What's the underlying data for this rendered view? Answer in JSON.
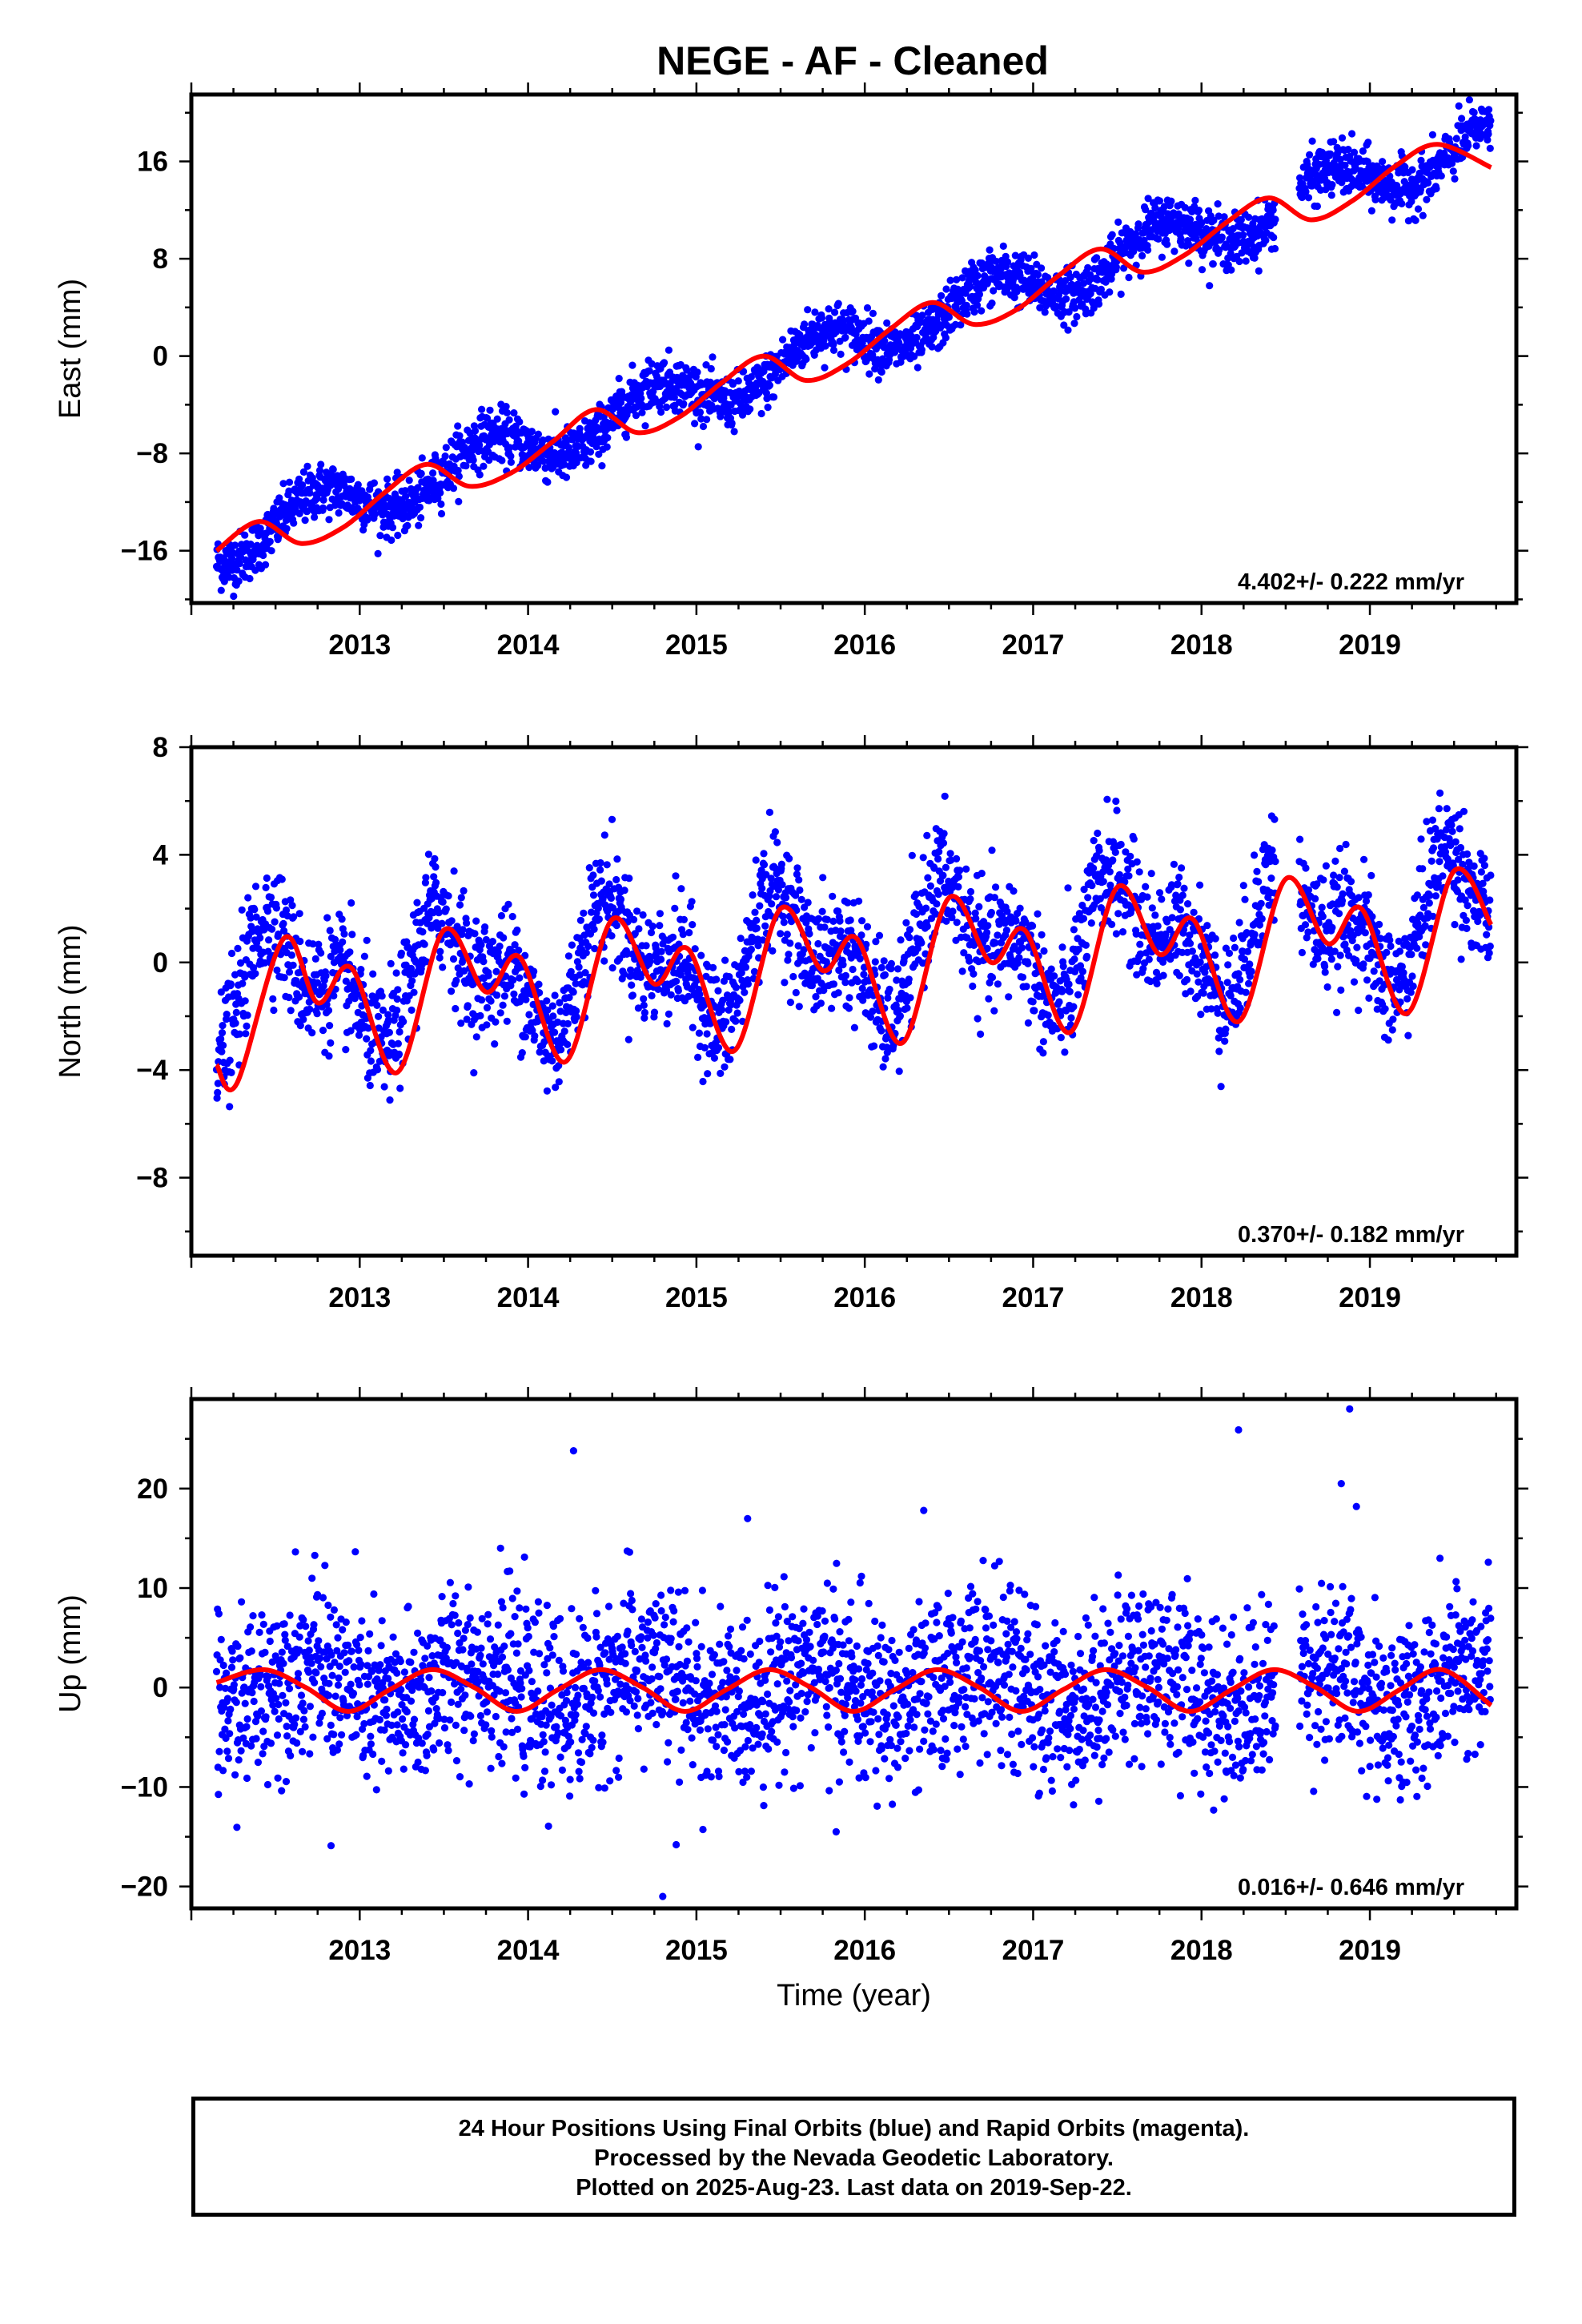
{
  "title": "NEGE  - AF - Cleaned",
  "footer": {
    "lines": [
      "24 Hour Positions Using Final Orbits (blue) and Rapid Orbits (magenta).",
      "Processed by the Nevada Geodetic Laboratory.",
      "Plotted on 2025-Aug-23. Last data on 2019-Sep-22."
    ]
  },
  "colors": {
    "points": "#0000ff",
    "fit": "#ff0000",
    "frame": "#000000"
  },
  "chart_data": [
    {
      "type": "scatter",
      "component": "east",
      "ylabel": "East (mm)",
      "xlabel": "",
      "xlim": [
        2012.0,
        2019.87
      ],
      "ylim": [
        -20.3,
        21.5
      ],
      "xticks": [
        2013,
        2014,
        2015,
        2016,
        2017,
        2018,
        2019
      ],
      "yticks": [
        -16,
        -8,
        0,
        8,
        16
      ],
      "ytick_labels": [
        "−16",
        "−8",
        "0",
        "8",
        "16"
      ],
      "rate_label": "4.402+/- 0.222 mm/yr",
      "series": [
        {
          "kind": "points",
          "x_start": 2012.15,
          "x_end": 2019.72,
          "trend_mm_per_yr": 4.4,
          "offset_mm": -15.5,
          "annual_amp_mm": 1.8,
          "annual_phase": 0.5,
          "noise_mm": 1.1,
          "gap": [
            2018.44,
            2018.58
          ]
        },
        {
          "kind": "fit",
          "x": [
            2012.15,
            2012.4,
            2012.65,
            2012.9,
            2013.15,
            2013.4,
            2013.65,
            2013.9,
            2014.15,
            2014.4,
            2014.65,
            2014.9,
            2015.15,
            2015.4,
            2015.65,
            2015.9,
            2016.15,
            2016.4,
            2016.65,
            2016.9,
            2017.15,
            2017.4,
            2017.65,
            2017.9,
            2018.15,
            2018.4,
            2018.65,
            2018.9,
            2019.15,
            2019.4,
            2019.72
          ],
          "y": [
            -16.0,
            -13.6,
            -15.4,
            -14.1,
            -11.2,
            -8.9,
            -10.7,
            -9.6,
            -7.0,
            -4.4,
            -6.3,
            -5.0,
            -2.2,
            0.0,
            -2.0,
            -0.6,
            2.2,
            4.4,
            2.6,
            3.8,
            6.6,
            8.8,
            6.9,
            8.3,
            11.0,
            13.0,
            11.2,
            12.8,
            15.6,
            17.4,
            15.5
          ]
        }
      ]
    },
    {
      "type": "scatter",
      "component": "north",
      "ylabel": "North (mm)",
      "xlabel": "",
      "xlim": [
        2012.0,
        2019.87
      ],
      "ylim": [
        -10.9,
        8.0
      ],
      "xticks": [
        2013,
        2014,
        2015,
        2016,
        2017,
        2018,
        2019
      ],
      "yticks": [
        -8,
        -4,
        0,
        4,
        8
      ],
      "ytick_labels": [
        "−8",
        "−4",
        "0",
        "4",
        "8"
      ],
      "rate_label": "0.370+/- 0.182 mm/yr",
      "series": [
        {
          "kind": "points",
          "x_start": 2012.15,
          "x_end": 2019.72,
          "trend_mm_per_yr": 0.37,
          "offset_mm": -1.0,
          "annual_amp_mm": 1.7,
          "annual_phase": 0.3,
          "semiannual_amp_mm": 1.2,
          "noise_mm": 1.1,
          "gap": [
            2018.44,
            2018.58
          ]
        },
        {
          "kind": "fit",
          "x": [
            2012.15,
            2012.27,
            2012.55,
            2012.75,
            2012.95,
            2013.22,
            2013.5,
            2013.75,
            2013.95,
            2014.22,
            2014.5,
            2014.75,
            2014.95,
            2015.22,
            2015.5,
            2015.75,
            2015.95,
            2016.22,
            2016.5,
            2016.75,
            2016.95,
            2017.22,
            2017.5,
            2017.75,
            2017.95,
            2018.22,
            2018.5,
            2018.75,
            2018.95,
            2019.22,
            2019.5,
            2019.72
          ],
          "y": [
            -3.8,
            -4.5,
            0.9,
            -1.5,
            -0.2,
            -4.1,
            1.2,
            -1.1,
            0.2,
            -3.7,
            1.6,
            -0.8,
            0.5,
            -3.3,
            2.0,
            -0.3,
            0.9,
            -3.0,
            2.4,
            0.0,
            1.2,
            -2.6,
            2.8,
            0.3,
            1.6,
            -2.2,
            3.1,
            0.7,
            2.0,
            -1.9,
            3.4,
            1.4
          ]
        }
      ]
    },
    {
      "type": "scatter",
      "component": "up",
      "ylabel": "Up (mm)",
      "xlabel": "Time (year)",
      "xlim": [
        2012.0,
        2019.87
      ],
      "ylim": [
        -22.2,
        29.0
      ],
      "xticks": [
        2013,
        2014,
        2015,
        2016,
        2017,
        2018,
        2019
      ],
      "yticks": [
        -20,
        -10,
        0,
        10,
        20
      ],
      "ytick_labels": [
        "−20",
        "−10",
        "0",
        "10",
        "20"
      ],
      "rate_label": "0.016+/- 0.646 mm/yr",
      "series": [
        {
          "kind": "points",
          "x_start": 2012.15,
          "x_end": 2019.72,
          "trend_mm_per_yr": 0.016,
          "offset_mm": 0.0,
          "annual_amp_mm": 2.1,
          "annual_phase": 0.43,
          "noise_mm": 4.3,
          "gap": [
            2018.44,
            2018.58
          ]
        },
        {
          "kind": "fit",
          "x": [
            2012.15,
            2012.43,
            2012.68,
            2012.93,
            2013.18,
            2013.43,
            2013.68,
            2013.93,
            2014.18,
            2014.43,
            2014.68,
            2014.93,
            2015.18,
            2015.43,
            2015.68,
            2015.93,
            2016.18,
            2016.43,
            2016.68,
            2016.93,
            2017.18,
            2017.43,
            2017.68,
            2017.93,
            2018.18,
            2018.43,
            2018.68,
            2018.93,
            2019.18,
            2019.43,
            2019.72
          ],
          "y": [
            0.5,
            1.8,
            0.0,
            -2.4,
            -0.2,
            1.8,
            0.0,
            -2.4,
            -0.2,
            1.8,
            0.0,
            -2.4,
            -0.2,
            1.8,
            0.0,
            -2.4,
            -0.2,
            1.8,
            0.0,
            -2.4,
            -0.2,
            1.8,
            0.0,
            -2.4,
            -0.2,
            1.8,
            0.0,
            -2.4,
            -0.2,
            1.8,
            -1.8
          ]
        },
        {
          "kind": "outliers",
          "x": [
            2014.27,
            2018.22,
            2018.88,
            2018.83,
            2018.92,
            2016.35,
            2014.8,
            2014.88,
            2012.83,
            2015.83
          ],
          "y": [
            23.8,
            25.9,
            28.0,
            20.5,
            18.2,
            17.8,
            -21.0,
            -15.8,
            -15.9,
            -14.5
          ]
        }
      ]
    }
  ]
}
